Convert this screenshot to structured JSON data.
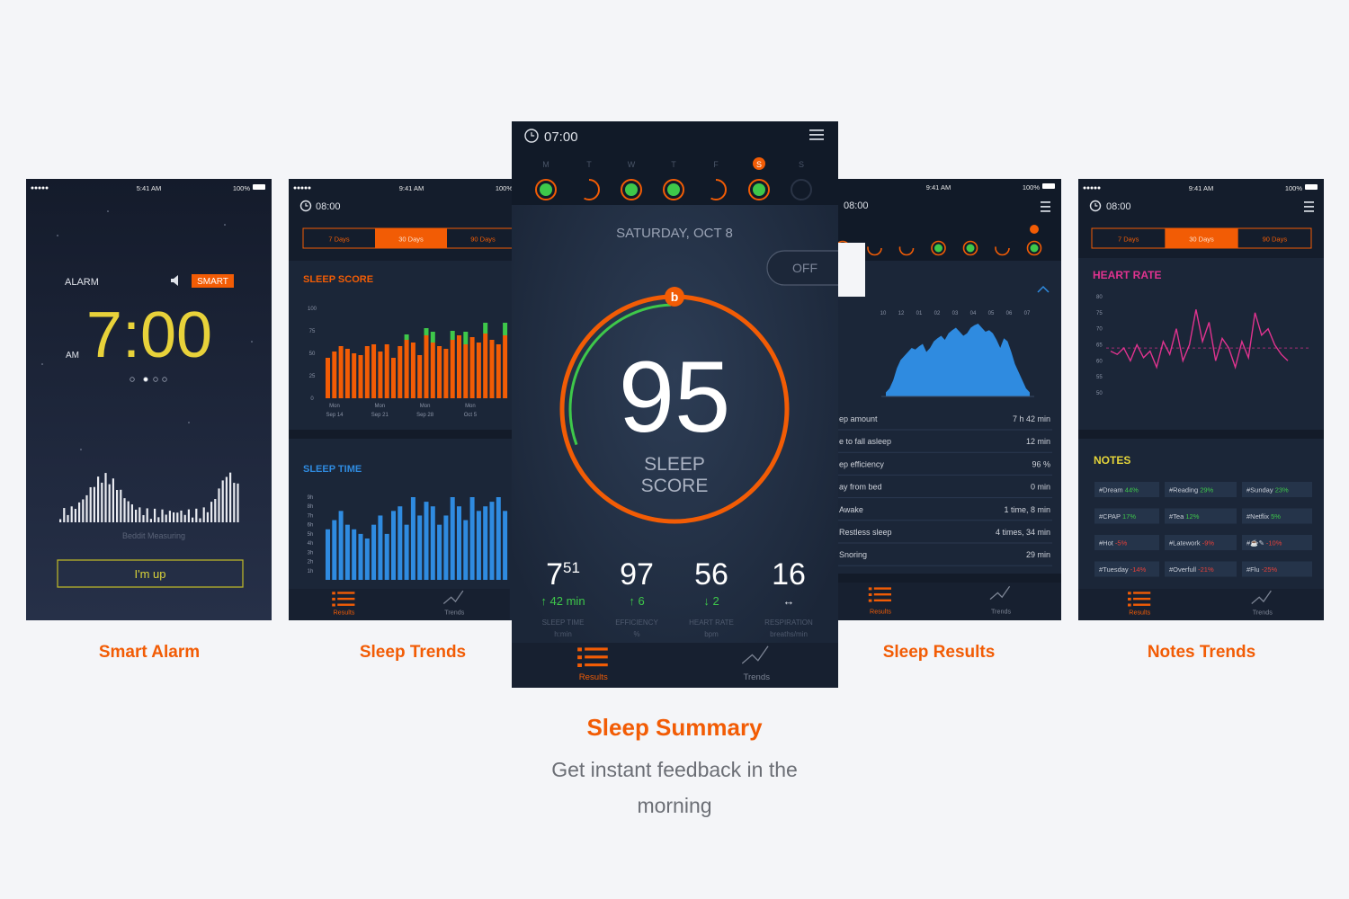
{
  "screens": {
    "alarm": {
      "time_status": "5:41 AM",
      "battery": "100%",
      "alarm_label": "ALARM",
      "smart": "SMART",
      "time": "7:00",
      "ampm": "AM",
      "measuring": "Beddit Measuring",
      "button": "I'm up",
      "caption": "Smart Alarm"
    },
    "trends": {
      "clock": "08:00",
      "time_status": "9:41 AM",
      "battery": "100%",
      "tabs": [
        "7 Days",
        "30 Days",
        "90 Days"
      ],
      "score_title": "SLEEP SCORE",
      "score_ylim": [
        0,
        100
      ],
      "score_ticks": [
        100,
        75,
        50,
        25,
        0
      ],
      "score_bars": [
        45,
        52,
        58,
        55,
        50,
        48,
        58,
        60,
        52,
        60,
        45,
        58,
        65,
        62,
        48,
        70,
        62,
        58,
        55,
        65,
        70,
        60,
        68,
        62,
        72,
        65,
        60,
        70
      ],
      "score_bonus": [
        0,
        0,
        0,
        0,
        0,
        0,
        0,
        0,
        0,
        0,
        0,
        0,
        6,
        0,
        0,
        8,
        12,
        0,
        0,
        10,
        0,
        14,
        0,
        0,
        12,
        0,
        0,
        14
      ],
      "dates": [
        [
          "Mon",
          "Sep 14"
        ],
        [
          "Mon",
          "Sep 21"
        ],
        [
          "Mon",
          "Sep 28"
        ],
        [
          "Mon",
          "Oct 5"
        ]
      ],
      "time_title": "SLEEP TIME",
      "time_ylim": [
        0,
        9
      ],
      "time_ticks": [
        {
          "value": 9,
          "label": "9h"
        },
        {
          "value": 8,
          "label": "8h"
        },
        {
          "value": 7,
          "label": "7h"
        },
        {
          "value": 6,
          "label": "6h"
        },
        {
          "value": 5,
          "label": "5h"
        },
        {
          "value": 4,
          "label": "4h"
        },
        {
          "value": 3,
          "label": "3h"
        },
        {
          "value": 2,
          "label": "2h"
        },
        {
          "value": 1,
          "label": "1h"
        }
      ],
      "time_bars": [
        5.5,
        6.5,
        7.5,
        6,
        5.5,
        5,
        4.5,
        6,
        7,
        5,
        7.5,
        8,
        6,
        9,
        7,
        8.5,
        8,
        6,
        7,
        9,
        8,
        6.5,
        9,
        7.5,
        8,
        8.5,
        9,
        7.5
      ],
      "nav": [
        "Results",
        "Trends"
      ],
      "caption": "Sleep Trends"
    },
    "summary": {
      "clock": "07:00",
      "days": [
        "M",
        "T",
        "W",
        "T",
        "F",
        "S",
        "S"
      ],
      "date": "SATURDAY, OCT 8",
      "off": "OFF",
      "badge": "b",
      "score": 95,
      "score_label": [
        "SLEEP",
        "SCORE"
      ],
      "stats": [
        {
          "value": 7,
          "sup": 51,
          "delta": "↑ 42 min",
          "label": "SLEEP TIME",
          "unit": "h:min"
        },
        {
          "value": 97,
          "delta": "↑ 6",
          "label": "EFFICIENCY",
          "unit": "%"
        },
        {
          "value": 56,
          "delta": "↓ 2",
          "label": "HEART RATE",
          "unit": "bpm"
        },
        {
          "value": 16,
          "delta": "↔",
          "label": "RESPIRATION",
          "unit": "breaths/min"
        }
      ],
      "nav": [
        "Results",
        "Trends"
      ],
      "caption": "Sleep Summary",
      "description": "Get instant feedback in the morning"
    },
    "results": {
      "clock": "08:00",
      "time_status": "9:41 AM",
      "battery": "100%",
      "section": "EEP",
      "hours": [
        "10",
        "12",
        "01",
        "02",
        "03",
        "04",
        "05",
        "06",
        "07"
      ],
      "hypnogram": [
        5,
        10,
        20,
        35,
        45,
        50,
        55,
        60,
        58,
        62,
        65,
        55,
        60,
        68,
        72,
        75,
        70,
        78,
        82,
        85,
        80,
        75,
        78,
        85,
        88,
        90,
        85,
        80,
        82,
        78,
        70,
        60,
        72,
        68,
        55,
        40,
        30,
        20,
        10,
        5
      ],
      "rows": [
        {
          "label": "ep amount",
          "value": "7 h 42 min"
        },
        {
          "label": "e to fall asleep",
          "value": "12 min"
        },
        {
          "label": "ep efficiency",
          "value": "96 %"
        },
        {
          "label": "ay from bed",
          "value": "0 min"
        },
        {
          "label": "Awake",
          "value": "1 time, 8 min"
        },
        {
          "label": "Restless sleep",
          "value": "4 times, 34 min"
        },
        {
          "label": "Snoring",
          "value": "29 min"
        }
      ],
      "nav": [
        "Results",
        "Trends"
      ],
      "caption": "Sleep Results"
    },
    "notes": {
      "clock": "08:00",
      "time_status": "9:41 AM",
      "battery": "100%",
      "tabs": [
        "7 Days",
        "30 Days",
        "90 Days"
      ],
      "hr_title": "HEART RATE",
      "hr_ylim": [
        50,
        80
      ],
      "hr_ticks": [
        80,
        75,
        70,
        65,
        60,
        55,
        50
      ],
      "hr_values": [
        63,
        62,
        64,
        60,
        65,
        61,
        63,
        58,
        66,
        62,
        70,
        60,
        65,
        76,
        66,
        72,
        60,
        67,
        64,
        58,
        66,
        61,
        75,
        68,
        70,
        65,
        62,
        60
      ],
      "hr_average": 64,
      "notes_title": "NOTES",
      "tags": [
        [
          {
            "label": "#Dream",
            "change": "44%"
          },
          {
            "label": "#Reading",
            "change": "29%"
          },
          {
            "label": "#Sunday",
            "change": "23%"
          }
        ],
        [
          {
            "label": "#CPAP",
            "change": "17%"
          },
          {
            "label": "#Tea",
            "change": "12%"
          },
          {
            "label": "#Netflix",
            "change": "5%"
          }
        ],
        [
          {
            "label": "#Hot",
            "change": "-5%"
          },
          {
            "label": "#Latework",
            "change": "-9%"
          },
          {
            "label": "#☕✎",
            "change": "-10%"
          }
        ],
        [
          {
            "label": "#Tuesday",
            "change": "-14%"
          },
          {
            "label": "#Overfull",
            "change": "-21%"
          },
          {
            "label": "#Flu",
            "change": "-25%"
          }
        ]
      ],
      "nav": [
        "Results",
        "Trends"
      ],
      "caption": "Notes Trends"
    }
  }
}
